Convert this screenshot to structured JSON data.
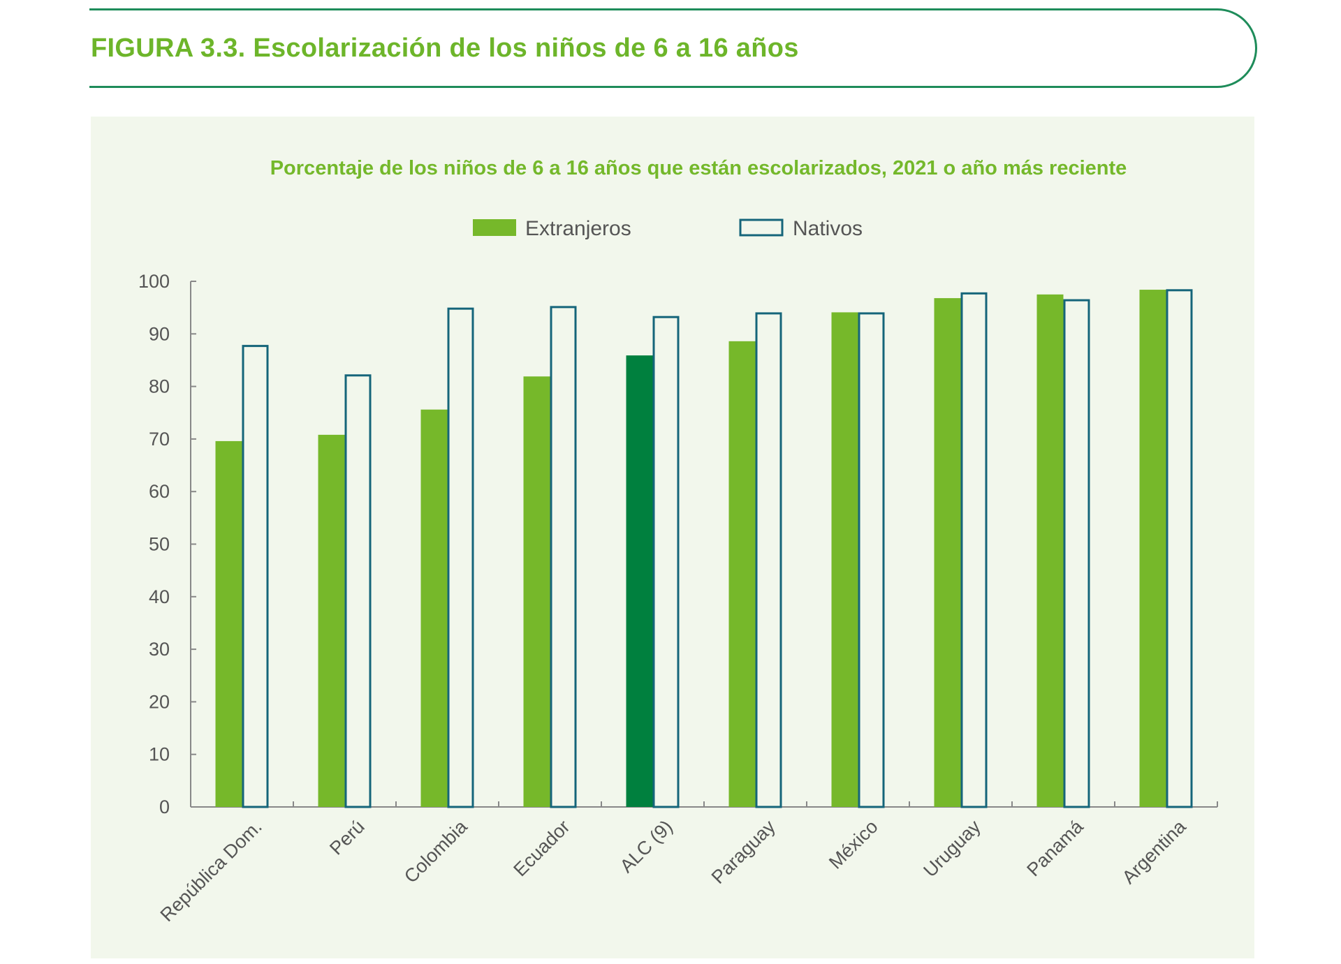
{
  "figure": {
    "title": "FIGURA 3.3. Escolarización de los niños de 6 a 16 años"
  },
  "colors": {
    "title_green": "#6DB52A",
    "frame_green": "#1E8C5A",
    "panel_background": "#F2F7EC",
    "extranjeros_fill": "#76B82A",
    "alc_highlight_fill": "#00803E",
    "nativos_stroke": "#15657A",
    "nativos_fill": "#F2F7EC",
    "axis": "#888888"
  },
  "chart_data": {
    "type": "bar",
    "title": "Porcentaje de los niños de 6 a 16 años que están escolarizados, 2021 o año más reciente",
    "xlabel": "",
    "ylabel": "",
    "ylim": [
      0,
      100
    ],
    "yticks": [
      "0",
      "10",
      "20",
      "30",
      "40",
      "50",
      "60",
      "70",
      "80",
      "90",
      "100"
    ],
    "grid": false,
    "legend_position": "top-center",
    "categories": [
      "República Dom.",
      "Perú",
      "Colombia",
      "Ecuador",
      "ALC (9)",
      "Paraguay",
      "México",
      "Uruguay",
      "Panamá",
      "Argentina"
    ],
    "highlight_category": "ALC (9)",
    "series": [
      {
        "name": "Extranjeros",
        "style": "filled",
        "values": [
          69.6,
          70.8,
          75.6,
          81.9,
          85.9,
          88.6,
          94.1,
          96.8,
          97.5,
          98.4
        ]
      },
      {
        "name": "Nativos",
        "style": "outlined",
        "values": [
          87.9,
          82.3,
          95.0,
          95.3,
          93.4,
          94.1,
          94.1,
          97.9,
          96.6,
          98.5
        ]
      }
    ]
  }
}
